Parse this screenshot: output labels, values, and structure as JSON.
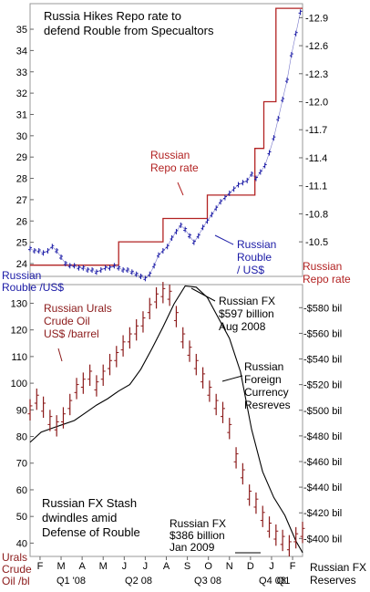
{
  "chart_data": [
    {
      "type": "line",
      "title": "Russia Hikes Repo rate to\ndefend Rouble from Specualtors",
      "left_axis": {
        "label": "Russian\nRouble /US$",
        "ticks": [
          24,
          25,
          26,
          27,
          28,
          29,
          30,
          31,
          32,
          33,
          34,
          35
        ],
        "ylim": [
          23.4,
          36.2
        ]
      },
      "right_axis": {
        "label": "Russian\nRepo rate",
        "ticks": [
          10.5,
          10.8,
          11.1,
          11.4,
          11.7,
          12.0,
          12.3,
          12.6,
          12.9
        ],
        "ylim": [
          10.13,
          13.05
        ]
      },
      "annotations": [
        {
          "text": "Russian\nRepo rate",
          "color": "#b22222"
        },
        {
          "text": "Russian\nRouble\n/ US$",
          "color": "#1a1aa6"
        }
      ],
      "series": [
        {
          "name": "Russian Repo rate",
          "color": "#b22222",
          "axis": "right",
          "points": [
            [
              0,
              10.25
            ],
            [
              4,
              10.25
            ],
            [
              4,
              10.5
            ],
            [
              6,
              10.5
            ],
            [
              6,
              10.75
            ],
            [
              8,
              10.75
            ],
            [
              8,
              11.0
            ],
            [
              10.15,
              11.0
            ],
            [
              10.15,
              11.5
            ],
            [
              10.55,
              11.5
            ],
            [
              10.55,
              12.0
            ],
            [
              11.1,
              12.0
            ],
            [
              11.1,
              13.0
            ],
            [
              12.3,
              13.0
            ]
          ]
        },
        {
          "name": "Russian Rouble /US$",
          "color": "#1a1aa6",
          "axis": "left",
          "x": [
            0.0,
            0.2,
            0.4,
            0.6,
            0.8,
            1.0,
            1.2,
            1.4,
            1.6,
            1.8,
            2.0,
            2.2,
            2.4,
            2.6,
            2.8,
            3.0,
            3.2,
            3.4,
            3.6,
            3.8,
            4.0,
            4.2,
            4.4,
            4.6,
            4.8,
            5.0,
            5.2,
            5.4,
            5.6,
            5.8,
            6.0,
            6.2,
            6.4,
            6.6,
            6.8,
            7.0,
            7.2,
            7.4,
            7.6,
            7.8,
            8.0,
            8.2,
            8.4,
            8.6,
            8.8,
            9.0,
            9.2,
            9.4,
            9.6,
            9.8,
            10.0,
            10.2,
            10.4,
            10.6,
            10.8,
            11.0,
            11.2,
            11.4,
            11.6,
            11.8,
            12.0,
            12.2
          ],
          "values": [
            24.7,
            24.6,
            24.6,
            24.5,
            24.6,
            24.8,
            24.6,
            24.3,
            24.0,
            23.9,
            23.9,
            23.8,
            23.8,
            23.7,
            23.7,
            23.6,
            23.7,
            23.8,
            23.8,
            23.9,
            23.8,
            23.7,
            23.7,
            23.6,
            23.5,
            23.4,
            23.3,
            23.5,
            23.9,
            24.4,
            24.6,
            24.8,
            25.2,
            25.5,
            25.8,
            25.6,
            25.3,
            25.0,
            25.3,
            25.7,
            26.0,
            26.3,
            26.6,
            26.9,
            27.1,
            27.3,
            27.5,
            27.7,
            27.8,
            27.9,
            28.2,
            28.0,
            28.3,
            28.6,
            29.2,
            29.9,
            30.8,
            31.7,
            32.6,
            33.8,
            34.8,
            35.8
          ]
        }
      ]
    },
    {
      "type": "line",
      "title": "Russian FX Stash\ndwindles amid\nDefense of Rouble",
      "left_axis": {
        "label": "Urals\nCrude\nOil /bl",
        "ticks": [
          40,
          50,
          60,
          70,
          80,
          90,
          100,
          110,
          120,
          130
        ],
        "ylim": [
          35,
          137
        ]
      },
      "right_axis": {
        "label": "Russian FX\nReserves",
        "ticks": [
          "$400 bil",
          "$420 bil",
          "$440 bil",
          "$460 bil",
          "$480 bil",
          "$500 bil",
          "$520 bil",
          "$540 bil",
          "$560 bil",
          "$580 bil"
        ],
        "ylim": [
          386,
          598
        ]
      },
      "x_ticks": [
        "F",
        "M",
        "A",
        "M",
        "J",
        "J",
        "A",
        "S",
        "O",
        "N",
        "D",
        "J",
        "F"
      ],
      "x_groups": [
        "Q1 '08",
        "Q2  08",
        "Q3  08",
        "Q4  08",
        "Q1"
      ],
      "annotations": [
        {
          "text": "Russian Urals\nCrude Oil\nUS$ /barrel",
          "color": "#8b1a1a"
        },
        {
          "text": "Russian FX\n$597 billion\nAug 2008",
          "color": "#000000"
        },
        {
          "text": "Russian\nForeign\nCurrency\nResreves",
          "color": "#000000"
        },
        {
          "text": "Russian FX\n$386 billion\nJan 2009",
          "color": "#000000"
        }
      ],
      "series": [
        {
          "name": "Russian Urals Crude Oil",
          "color": "#8b1a1a",
          "axis": "left",
          "x": [
            0.0,
            0.3,
            0.6,
            0.9,
            1.2,
            1.5,
            1.8,
            2.1,
            2.4,
            2.7,
            3.0,
            3.3,
            3.6,
            3.9,
            4.2,
            4.5,
            4.8,
            5.1,
            5.4,
            5.7,
            6.0,
            6.3,
            6.6,
            6.9,
            7.2,
            7.5,
            7.8,
            8.1,
            8.4,
            8.7,
            9.0,
            9.3,
            9.6,
            9.9,
            10.2,
            10.5,
            10.8,
            11.1,
            11.4,
            11.7,
            12.0,
            12.3
          ],
          "values": [
            90,
            94,
            91,
            86,
            84,
            87,
            92,
            98,
            100,
            103,
            99,
            103,
            107,
            110,
            114,
            117,
            120,
            123,
            128,
            132,
            134,
            133,
            125,
            117,
            112,
            107,
            102,
            97,
            92,
            89,
            83,
            72,
            66,
            58,
            55,
            50,
            46,
            43,
            41,
            39,
            42,
            44
          ]
        },
        {
          "name": "Russian Foreign Currency Reserves",
          "color": "#000000",
          "axis": "right",
          "x": [
            0.0,
            0.5,
            1.0,
            1.5,
            2.0,
            2.5,
            3.0,
            3.5,
            4.0,
            4.5,
            5.0,
            5.5,
            6.0,
            6.5,
            7.0,
            7.5,
            8.0,
            8.5,
            9.0,
            9.5,
            10.0,
            10.5,
            11.0,
            11.5,
            12.0,
            12.3
          ],
          "values": [
            475,
            483,
            486,
            489,
            492,
            498,
            504,
            509,
            515,
            520,
            532,
            548,
            565,
            583,
            597,
            596,
            588,
            572,
            556,
            530,
            485,
            452,
            432,
            418,
            398,
            389
          ]
        }
      ]
    }
  ]
}
